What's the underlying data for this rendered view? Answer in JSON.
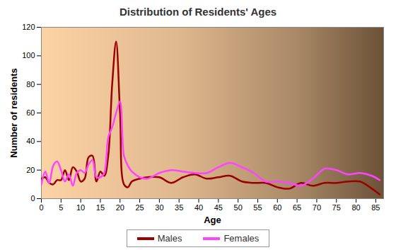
{
  "chart_data": {
    "type": "line",
    "title": "Distribution of Residents' Ages",
    "x_label": "Age",
    "y_label": "Number of residents",
    "x": [
      0,
      1,
      2,
      3,
      4,
      5,
      6,
      7,
      8,
      9,
      10,
      11,
      12,
      13,
      14,
      15,
      16,
      17,
      18,
      19,
      20,
      21,
      22,
      23,
      25,
      27,
      30,
      33,
      36,
      39,
      42,
      45,
      48,
      51,
      54,
      57,
      60,
      63,
      66,
      69,
      72,
      75,
      78,
      81,
      84,
      86
    ],
    "series": [
      {
        "name": "Males",
        "color": "#990000",
        "values": [
          14,
          15,
          11,
          10,
          13,
          13,
          20,
          13,
          22,
          19,
          12,
          14,
          29,
          30,
          12,
          19,
          16,
          30,
          80,
          110,
          60,
          10,
          8,
          12,
          14,
          15,
          15,
          11,
          15,
          17,
          14,
          15,
          16,
          12,
          11,
          11,
          8,
          7,
          11,
          9,
          11,
          11,
          12,
          12,
          7,
          3
        ]
      },
      {
        "name": "Females",
        "color": "#ff44ff",
        "values": [
          10,
          19,
          11,
          23,
          26,
          20,
          12,
          17,
          9,
          18,
          20,
          18,
          24,
          27,
          15,
          15,
          18,
          43,
          50,
          60,
          68,
          30,
          23,
          19,
          15,
          14,
          18,
          20,
          19,
          18,
          18,
          22,
          25,
          22,
          18,
          12,
          12,
          11,
          9,
          14,
          21,
          20,
          17,
          18,
          16,
          13
        ]
      }
    ],
    "xlim": [
      0,
      87
    ],
    "xticks": [
      0,
      5,
      10,
      15,
      20,
      25,
      30,
      35,
      40,
      45,
      50,
      55,
      60,
      65,
      70,
      75,
      80,
      85
    ],
    "ylim": [
      0,
      120
    ],
    "yticks": [
      0,
      20,
      40,
      60,
      80,
      100,
      120
    ],
    "grid": false,
    "legend": "bottom"
  }
}
